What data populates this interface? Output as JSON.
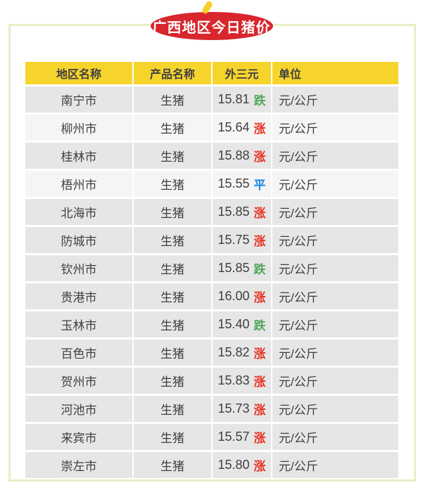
{
  "page": {
    "title": "广西地区今日猪价"
  },
  "colors": {
    "title_badge_bg": "#d8262c",
    "title_stem": "#f6cf2b",
    "table_header_bg": "#f6d42c",
    "row_gray": "#e6e6e6",
    "row_light": "#f5f5f5",
    "frame_border": "#e9efc4",
    "text": "#3f3f3f",
    "trend_up": "#e83323",
    "trend_down": "#55a758",
    "trend_flat": "#1e88e5"
  },
  "chart_data": {
    "type": "table",
    "title": "广西地区今日猪价",
    "columns": [
      "地区名称",
      "产品名称",
      "外三元",
      "单位"
    ],
    "rows": [
      {
        "region": "南宁市",
        "product": "生猪",
        "price": "15.81",
        "trend": "跌",
        "trend_dir": "down",
        "unit": "元/公斤",
        "shade": "gray"
      },
      {
        "region": "柳州市",
        "product": "生猪",
        "price": "15.64",
        "trend": "涨",
        "trend_dir": "up",
        "unit": "元/公斤",
        "shade": "light"
      },
      {
        "region": "桂林市",
        "product": "生猪",
        "price": "15.88",
        "trend": "涨",
        "trend_dir": "up",
        "unit": "元/公斤",
        "shade": "gray"
      },
      {
        "region": "梧州市",
        "product": "生猪",
        "price": "15.55",
        "trend": "平",
        "trend_dir": "flat",
        "unit": "元/公斤",
        "shade": "light"
      },
      {
        "region": "北海市",
        "product": "生猪",
        "price": "15.85",
        "trend": "涨",
        "trend_dir": "up",
        "unit": "元/公斤",
        "shade": "gray"
      },
      {
        "region": "防城市",
        "product": "生猪",
        "price": "15.75",
        "trend": "涨",
        "trend_dir": "up",
        "unit": "元/公斤",
        "shade": "gray"
      },
      {
        "region": "钦州市",
        "product": "生猪",
        "price": "15.85",
        "trend": "跌",
        "trend_dir": "down",
        "unit": "元/公斤",
        "shade": "gray"
      },
      {
        "region": "贵港市",
        "product": "生猪",
        "price": "16.00",
        "trend": "涨",
        "trend_dir": "up",
        "unit": "元/公斤",
        "shade": "gray"
      },
      {
        "region": "玉林市",
        "product": "生猪",
        "price": "15.40",
        "trend": "跌",
        "trend_dir": "down",
        "unit": "元/公斤",
        "shade": "gray"
      },
      {
        "region": "百色市",
        "product": "生猪",
        "price": "15.82",
        "trend": "涨",
        "trend_dir": "up",
        "unit": "元/公斤",
        "shade": "gray"
      },
      {
        "region": "贺州市",
        "product": "生猪",
        "price": "15.83",
        "trend": "涨",
        "trend_dir": "up",
        "unit": "元/公斤",
        "shade": "gray"
      },
      {
        "region": "河池市",
        "product": "生猪",
        "price": "15.73",
        "trend": "涨",
        "trend_dir": "up",
        "unit": "元/公斤",
        "shade": "gray"
      },
      {
        "region": "来宾市",
        "product": "生猪",
        "price": "15.57",
        "trend": "涨",
        "trend_dir": "up",
        "unit": "元/公斤",
        "shade": "gray"
      },
      {
        "region": "崇左市",
        "product": "生猪",
        "price": "15.80",
        "trend": "涨",
        "trend_dir": "up",
        "unit": "元/公斤",
        "shade": "gray"
      }
    ]
  }
}
